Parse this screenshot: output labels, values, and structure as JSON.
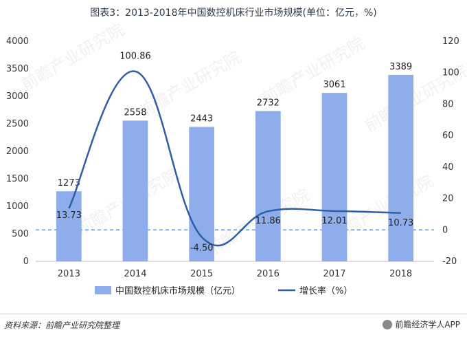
{
  "title": "图表3：2013-2018年中国数控机床行业市场规模(单位：亿元，%)",
  "source": "资料来源：前瞻产业研究院整理",
  "brand": "前瞻经济学人APP",
  "watermark": "前瞻产业研究院",
  "chart_data": {
    "type": "bar",
    "categories": [
      "2013",
      "2014",
      "2015",
      "2016",
      "2017",
      "2018"
    ],
    "series": [
      {
        "name": "中国数控机床市场规模（亿元）",
        "type": "bar",
        "axis": "left",
        "color": "#8fadea",
        "values": [
          1273,
          2558,
          2443,
          2732,
          3061,
          3389
        ],
        "labels": [
          "1273",
          "2558",
          "2443",
          "2732",
          "3061",
          "3389"
        ]
      },
      {
        "name": "增长率（%）",
        "type": "line",
        "axis": "right",
        "color": "#2e5fa6",
        "values": [
          13.73,
          100.86,
          -4.5,
          11.86,
          12.01,
          10.73
        ],
        "labels": [
          "13.73",
          "100.86",
          "-4.50",
          "11.86",
          "12.01",
          "10.73"
        ]
      }
    ],
    "y_left": {
      "min": 0,
      "max": 4000,
      "ticks": [
        "0",
        "500",
        "1000",
        "1500",
        "2000",
        "2500",
        "3000",
        "3500",
        "4000"
      ]
    },
    "y_right": {
      "min": -20,
      "max": 120,
      "ticks": [
        "-20",
        "0",
        "20",
        "40",
        "60",
        "80",
        "100",
        "120"
      ]
    },
    "zero_line": "dashed",
    "grid": false,
    "legend_position": "bottom"
  }
}
